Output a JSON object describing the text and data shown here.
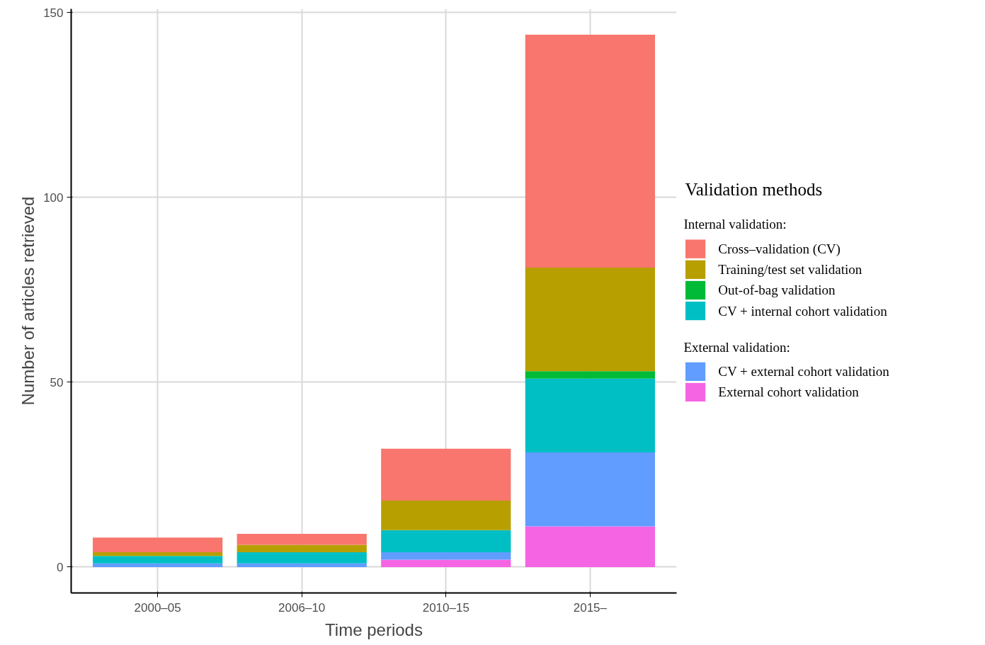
{
  "chart_data": {
    "type": "bar",
    "stacked": true,
    "xlabel": "Time periods",
    "ylabel": "Number of articles retrieved",
    "legend_title": "Validation methods",
    "annotations": [
      "Internal validation:",
      "External validation:"
    ],
    "categories": [
      "2000–05",
      "2006–10",
      "2010–15",
      "2015–"
    ],
    "series": [
      {
        "name": "External cohort validation",
        "color": "#f564e3",
        "values": [
          0,
          0,
          2,
          11
        ]
      },
      {
        "name": "CV + external cohort validation",
        "color": "#619cff",
        "values": [
          1,
          1,
          2,
          20
        ]
      },
      {
        "name": "CV + internal cohort validation",
        "color": "#00bfc4",
        "values": [
          2,
          3,
          6,
          20
        ]
      },
      {
        "name": "Out-of-bag validation",
        "color": "#00ba38",
        "values": [
          0,
          0,
          0,
          2
        ]
      },
      {
        "name": "Training/test set validation",
        "color": "#b79f00",
        "values": [
          1,
          2,
          8,
          28
        ]
      },
      {
        "name": "Cross–validation (CV)",
        "color": "#f8766d",
        "values": [
          4,
          3,
          14,
          63
        ]
      }
    ],
    "ylim": [
      -7,
      151
    ],
    "yticks": [
      0,
      50,
      100,
      150
    ],
    "grid": true,
    "legend": "right"
  }
}
